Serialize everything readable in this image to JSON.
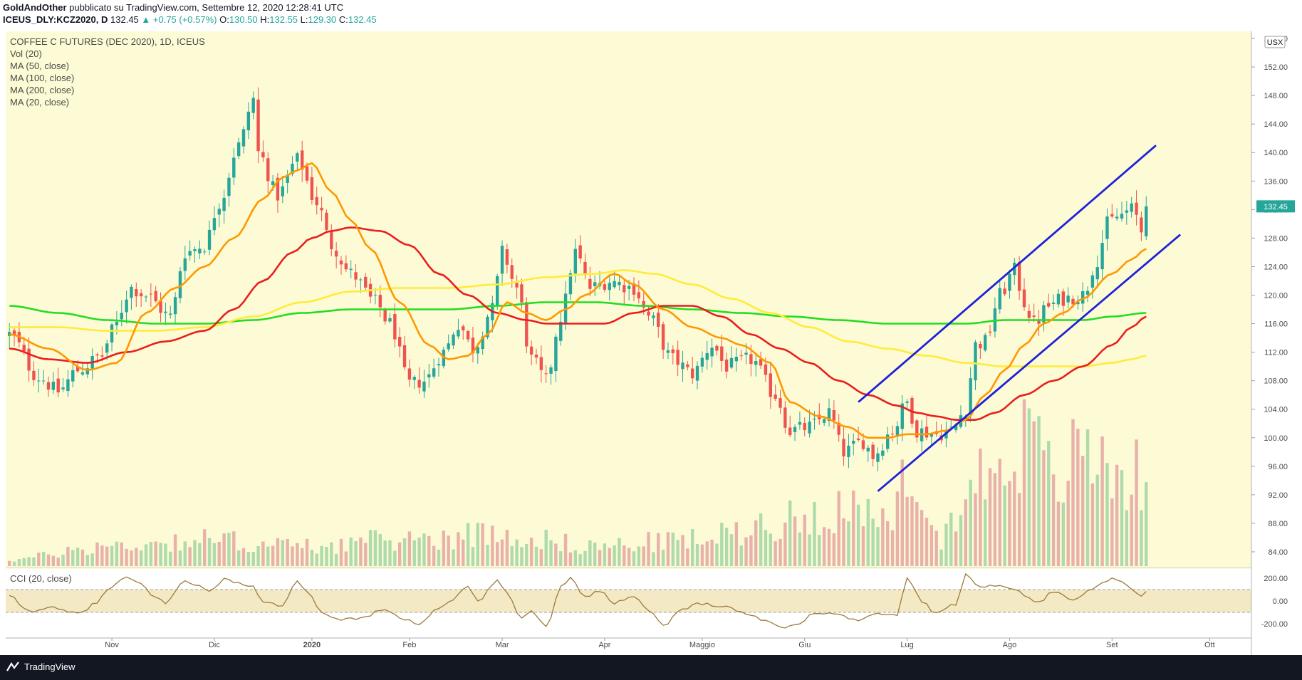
{
  "header": {
    "author": "GoldAndOther",
    "published": "pubblicato su TradingView.com, Settembre 12, 2020 12:28:41 UTC",
    "symbol": "ICEUS_DLY:KCZ2020, D",
    "last": "132.45",
    "change": "▲ +0.75 (+0.57%)",
    "o_label": "O:",
    "o": "130.50",
    "h_label": "H:",
    "h": "132.55",
    "l_label": "L:",
    "l": "129.30",
    "c_label": "C:",
    "c": "132.45"
  },
  "legend": [
    "COFFEE C FUTURES (DEC 2020), 1D, ICEUS",
    "Vol (20)",
    "MA (50, close)",
    "MA (100, close)",
    "MA (200, close)",
    "MA (20, close)"
  ],
  "cci": {
    "label": "CCI (20, close)",
    "ticks": [
      "200.00",
      "0.00",
      "-200.00"
    ]
  },
  "footer": {
    "brand": "TradingView"
  },
  "colors": {
    "background": "#fdfbd5",
    "up": "#26a69a",
    "down": "#ef5350",
    "ma20": "#ff9800",
    "ma50": "#e91e1e",
    "ma100": "#ffeb3b",
    "ma200": "#22dd22",
    "channel": "#1e22d8",
    "cci_line": "#9b7b3c",
    "cci_band": "#f1e3b6"
  },
  "chart_data": {
    "type": "candlestick",
    "currency": "USX",
    "last_price_label": "132.45",
    "y_ticks": [
      "156.00",
      "152.00",
      "148.00",
      "144.00",
      "140.00",
      "136.00",
      "132.00",
      "128.00",
      "124.00",
      "120.00",
      "116.00",
      "112.00",
      "108.00",
      "104.00",
      "100.00",
      "96.00",
      "92.00",
      "88.00",
      "84.00"
    ],
    "y_range": [
      82.0,
      157.0
    ],
    "x_ticks": [
      {
        "label": "Nov",
        "idx": 21
      },
      {
        "label": "Dic",
        "idx": 42
      },
      {
        "label": "2020",
        "idx": 62
      },
      {
        "label": "Feb",
        "idx": 82
      },
      {
        "label": "Mar",
        "idx": 101
      },
      {
        "label": "Apr",
        "idx": 122
      },
      {
        "label": "Maggio",
        "idx": 142
      },
      {
        "label": "Giu",
        "idx": 163
      },
      {
        "label": "Lug",
        "idx": 184
      },
      {
        "label": "Ago",
        "idx": 205
      },
      {
        "label": "Set",
        "idx": 226
      },
      {
        "label": "Ott",
        "idx": 246
      }
    ],
    "close_anchors": [
      [
        0,
        114.5
      ],
      [
        6,
        108.5
      ],
      [
        10,
        106.5
      ],
      [
        14,
        109.5
      ],
      [
        19,
        111.5
      ],
      [
        21,
        115.0
      ],
      [
        25,
        121.0
      ],
      [
        28,
        120.0
      ],
      [
        33,
        117.0
      ],
      [
        36,
        126.0
      ],
      [
        40,
        127.0
      ],
      [
        43,
        133.0
      ],
      [
        47,
        141.0
      ],
      [
        50,
        147.5
      ],
      [
        51,
        140.0
      ],
      [
        55,
        134.0
      ],
      [
        59,
        139.0
      ],
      [
        63,
        133.0
      ],
      [
        66,
        127.0
      ],
      [
        70,
        123.0
      ],
      [
        75,
        119.0
      ],
      [
        78,
        116.0
      ],
      [
        82,
        107.5
      ],
      [
        85,
        108.0
      ],
      [
        89,
        112.0
      ],
      [
        92,
        116.0
      ],
      [
        95,
        112.5
      ],
      [
        99,
        118.0
      ],
      [
        101,
        126.0
      ],
      [
        104,
        121.0
      ],
      [
        107,
        111.0
      ],
      [
        110,
        108.0
      ],
      [
        113,
        117.0
      ],
      [
        116,
        126.0
      ],
      [
        119,
        121.0
      ],
      [
        123,
        122.0
      ],
      [
        128,
        121.0
      ],
      [
        131,
        117.0
      ],
      [
        136,
        111.0
      ],
      [
        140,
        109.0
      ],
      [
        144,
        113.0
      ],
      [
        147,
        110.0
      ],
      [
        152,
        111.0
      ],
      [
        157,
        106.0
      ],
      [
        160,
        101.0
      ],
      [
        164,
        101.5
      ],
      [
        168,
        103.5
      ],
      [
        171,
        98.0
      ],
      [
        175,
        99.5
      ],
      [
        177,
        97.5
      ],
      [
        181,
        101.0
      ],
      [
        184,
        105.0
      ],
      [
        186,
        101.0
      ],
      [
        190,
        100.5
      ],
      [
        193,
        101.0
      ],
      [
        196,
        104.0
      ],
      [
        198,
        113.0
      ],
      [
        200,
        113.5
      ],
      [
        203,
        120.0
      ],
      [
        206,
        123.5
      ],
      [
        208,
        119.0
      ],
      [
        210,
        116.0
      ],
      [
        213,
        118.5
      ],
      [
        216,
        119.5
      ],
      [
        220,
        120.0
      ],
      [
        223,
        125.0
      ],
      [
        225,
        130.0
      ],
      [
        227,
        131.0
      ],
      [
        230,
        132.0
      ],
      [
        231,
        131.0
      ],
      [
        232,
        129.0
      ],
      [
        233,
        132.45
      ]
    ],
    "volume_anchors": [
      [
        0,
        1
      ],
      [
        20,
        3
      ],
      [
        40,
        4
      ],
      [
        60,
        3
      ],
      [
        80,
        4
      ],
      [
        100,
        5
      ],
      [
        120,
        3
      ],
      [
        140,
        4
      ],
      [
        160,
        7
      ],
      [
        170,
        9
      ],
      [
        180,
        6
      ],
      [
        185,
        15
      ],
      [
        190,
        4
      ],
      [
        195,
        9
      ],
      [
        200,
        14
      ],
      [
        205,
        19
      ],
      [
        210,
        18
      ],
      [
        214,
        13
      ],
      [
        220,
        17
      ],
      [
        226,
        15
      ],
      [
        233,
        13
      ]
    ],
    "volume_max": 20,
    "cci_anchors": [
      [
        0,
        40
      ],
      [
        4,
        -90
      ],
      [
        8,
        -60
      ],
      [
        14,
        -110
      ],
      [
        18,
        -20
      ],
      [
        20,
        100
      ],
      [
        24,
        200
      ],
      [
        26,
        170
      ],
      [
        30,
        40
      ],
      [
        32,
        -20
      ],
      [
        36,
        180
      ],
      [
        38,
        150
      ],
      [
        41,
        80
      ],
      [
        44,
        190
      ],
      [
        46,
        170
      ],
      [
        50,
        120
      ],
      [
        52,
        -10
      ],
      [
        56,
        -40
      ],
      [
        59,
        170
      ],
      [
        61,
        80
      ],
      [
        64,
        -110
      ],
      [
        68,
        -160
      ],
      [
        72,
        -150
      ],
      [
        77,
        -70
      ],
      [
        80,
        -150
      ],
      [
        84,
        -200
      ],
      [
        88,
        -60
      ],
      [
        91,
        20
      ],
      [
        94,
        130
      ],
      [
        96,
        -10
      ],
      [
        100,
        180
      ],
      [
        102,
        60
      ],
      [
        105,
        -150
      ],
      [
        107,
        -80
      ],
      [
        110,
        -230
      ],
      [
        113,
        120
      ],
      [
        115,
        210
      ],
      [
        118,
        40
      ],
      [
        121,
        90
      ],
      [
        124,
        -20
      ],
      [
        128,
        50
      ],
      [
        131,
        -80
      ],
      [
        134,
        -210
      ],
      [
        138,
        -80
      ],
      [
        141,
        -20
      ],
      [
        146,
        -40
      ],
      [
        151,
        -110
      ],
      [
        155,
        -170
      ],
      [
        158,
        -230
      ],
      [
        162,
        -200
      ],
      [
        165,
        -100
      ],
      [
        170,
        -120
      ],
      [
        174,
        -170
      ],
      [
        178,
        -110
      ],
      [
        182,
        -130
      ],
      [
        184,
        210
      ],
      [
        187,
        0
      ],
      [
        190,
        -110
      ],
      [
        194,
        -30
      ],
      [
        196,
        240
      ],
      [
        199,
        130
      ],
      [
        203,
        130
      ],
      [
        206,
        110
      ],
      [
        209,
        20
      ],
      [
        211,
        -10
      ],
      [
        214,
        80
      ],
      [
        218,
        20
      ],
      [
        222,
        110
      ],
      [
        226,
        190
      ],
      [
        228,
        160
      ],
      [
        230,
        100
      ],
      [
        232,
        40
      ],
      [
        233,
        90
      ]
    ],
    "ma_anchors": {
      "ma20": [
        [
          0,
          114.5
        ],
        [
          8,
          112.5
        ],
        [
          16,
          109.5
        ],
        [
          22,
          110.5
        ],
        [
          28,
          117.5
        ],
        [
          34,
          121.0
        ],
        [
          40,
          124.0
        ],
        [
          46,
          128.0
        ],
        [
          52,
          133.5
        ],
        [
          56,
          136.5
        ],
        [
          59,
          137.5
        ],
        [
          62,
          138.5
        ],
        [
          66,
          134.5
        ],
        [
          70,
          130.5
        ],
        [
          74,
          126.5
        ],
        [
          80,
          119.0
        ],
        [
          86,
          113.0
        ],
        [
          90,
          111.0
        ],
        [
          94,
          111.5
        ],
        [
          98,
          114.5
        ],
        [
          102,
          119.0
        ],
        [
          106,
          117.5
        ],
        [
          110,
          116.5
        ],
        [
          114,
          118.0
        ],
        [
          118,
          120.0
        ],
        [
          124,
          123.0
        ],
        [
          128,
          121.5
        ],
        [
          134,
          118.0
        ],
        [
          140,
          115.5
        ],
        [
          146,
          114.0
        ],
        [
          150,
          113.0
        ],
        [
          156,
          110.5
        ],
        [
          160,
          105.0
        ],
        [
          166,
          103.0
        ],
        [
          172,
          101.5
        ],
        [
          176,
          100.0
        ],
        [
          180,
          100.0
        ],
        [
          184,
          100.5
        ],
        [
          188,
          100.5
        ],
        [
          192,
          101.0
        ],
        [
          196,
          102.5
        ],
        [
          200,
          106.0
        ],
        [
          204,
          109.5
        ],
        [
          208,
          113.0
        ],
        [
          212,
          116.0
        ],
        [
          216,
          117.5
        ],
        [
          220,
          119.5
        ],
        [
          226,
          123.0
        ],
        [
          230,
          125.0
        ],
        [
          233,
          126.5
        ]
      ],
      "ma50": [
        [
          0,
          112.5
        ],
        [
          8,
          111.0
        ],
        [
          16,
          110.5
        ],
        [
          24,
          112.0
        ],
        [
          32,
          113.5
        ],
        [
          40,
          115.0
        ],
        [
          46,
          118.0
        ],
        [
          52,
          122.0
        ],
        [
          58,
          126.0
        ],
        [
          62,
          128.0
        ],
        [
          66,
          129.0
        ],
        [
          70,
          129.5
        ],
        [
          76,
          129.0
        ],
        [
          82,
          127.0
        ],
        [
          88,
          123.0
        ],
        [
          94,
          120.0
        ],
        [
          100,
          117.5
        ],
        [
          106,
          116.5
        ],
        [
          110,
          116.0
        ],
        [
          116,
          116.0
        ],
        [
          122,
          116.0
        ],
        [
          128,
          117.5
        ],
        [
          134,
          118.5
        ],
        [
          140,
          118.5
        ],
        [
          146,
          117.0
        ],
        [
          152,
          114.5
        ],
        [
          158,
          112.5
        ],
        [
          164,
          110.5
        ],
        [
          170,
          108.0
        ],
        [
          176,
          106.0
        ],
        [
          182,
          104.5
        ],
        [
          186,
          103.5
        ],
        [
          190,
          103.0
        ],
        [
          194,
          102.5
        ],
        [
          198,
          102.5
        ],
        [
          202,
          103.5
        ],
        [
          208,
          106.0
        ],
        [
          214,
          108.0
        ],
        [
          220,
          110.0
        ],
        [
          226,
          113.0
        ],
        [
          230,
          115.5
        ],
        [
          233,
          117.0
        ]
      ],
      "ma100": [
        [
          0,
          115.5
        ],
        [
          10,
          115.5
        ],
        [
          20,
          115.0
        ],
        [
          30,
          115.0
        ],
        [
          40,
          115.5
        ],
        [
          50,
          117.0
        ],
        [
          60,
          119.0
        ],
        [
          70,
          120.5
        ],
        [
          80,
          121.0
        ],
        [
          90,
          121.0
        ],
        [
          100,
          121.5
        ],
        [
          110,
          122.5
        ],
        [
          120,
          123.0
        ],
        [
          126,
          123.5
        ],
        [
          132,
          123.0
        ],
        [
          140,
          121.5
        ],
        [
          148,
          119.5
        ],
        [
          156,
          117.5
        ],
        [
          164,
          115.5
        ],
        [
          172,
          113.5
        ],
        [
          180,
          112.5
        ],
        [
          188,
          111.5
        ],
        [
          196,
          110.5
        ],
        [
          204,
          110.0
        ],
        [
          212,
          110.0
        ],
        [
          220,
          110.0
        ],
        [
          226,
          110.5
        ],
        [
          230,
          111.0
        ],
        [
          233,
          111.5
        ]
      ],
      "ma200": [
        [
          0,
          118.5
        ],
        [
          10,
          117.5
        ],
        [
          20,
          116.5
        ],
        [
          30,
          116.0
        ],
        [
          40,
          116.0
        ],
        [
          50,
          116.5
        ],
        [
          60,
          117.5
        ],
        [
          70,
          118.0
        ],
        [
          80,
          118.0
        ],
        [
          90,
          118.0
        ],
        [
          100,
          118.5
        ],
        [
          110,
          119.0
        ],
        [
          120,
          119.0
        ],
        [
          130,
          118.5
        ],
        [
          140,
          118.0
        ],
        [
          150,
          117.5
        ],
        [
          160,
          117.0
        ],
        [
          170,
          116.5
        ],
        [
          180,
          116.0
        ],
        [
          190,
          116.0
        ],
        [
          196,
          116.0
        ],
        [
          204,
          116.5
        ],
        [
          212,
          116.5
        ],
        [
          220,
          116.5
        ],
        [
          226,
          117.0
        ],
        [
          233,
          117.5
        ]
      ]
    },
    "channel_lines": [
      {
        "from": [
          174,
          105.0
        ],
        "to": [
          235,
          141.0
        ]
      },
      {
        "from": [
          178,
          92.5
        ],
        "to": [
          240,
          128.5
        ]
      }
    ]
  }
}
